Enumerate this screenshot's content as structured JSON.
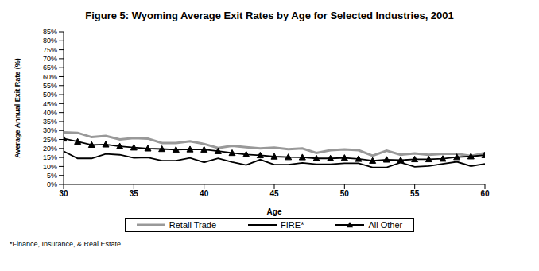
{
  "chart_data": {
    "type": "line",
    "title": "Figure 5: Wyoming Average Exit Rates by Age for Selected Industries, 2001",
    "x_label": "Age",
    "y_label": "Average Annual Exit Rate (%)",
    "footnote": "*Finance, Insurance, & Real Estate.",
    "x": [
      30,
      31,
      32,
      33,
      34,
      35,
      36,
      37,
      38,
      39,
      40,
      41,
      42,
      43,
      44,
      45,
      46,
      47,
      48,
      49,
      50,
      51,
      52,
      53,
      54,
      55,
      56,
      57,
      58,
      59,
      60
    ],
    "series": [
      {
        "name": "Retail Trade",
        "color": "#999999",
        "marker": "none",
        "line_style": "solid",
        "values": [
          29,
          28.7,
          26.3,
          27,
          25,
          25.8,
          25.5,
          23,
          23,
          24,
          22.5,
          20.3,
          21.5,
          20.7,
          20,
          20.5,
          19.6,
          20,
          17.5,
          19,
          19.5,
          19,
          16,
          18.8,
          16.5,
          17.3,
          16.5,
          17,
          17,
          15.8,
          17.5
        ]
      },
      {
        "name": "FIRE*",
        "color": "#000000",
        "marker": "none",
        "line_style": "solid",
        "values": [
          18.5,
          14.5,
          14.5,
          17,
          16.5,
          14.8,
          15,
          13.2,
          13.2,
          14.8,
          12.3,
          14.5,
          12.5,
          10.8,
          13.8,
          11,
          11,
          12,
          11.2,
          11.2,
          11.8,
          11.8,
          9.5,
          9.5,
          12.2,
          9.8,
          10.2,
          11.5,
          12.6,
          10.2,
          11.5
        ]
      },
      {
        "name": "All Other",
        "color": "#000000",
        "marker": "triangle",
        "line_style": "solid",
        "values": [
          25.5,
          23.8,
          22,
          22.2,
          21.2,
          20.5,
          20,
          19.7,
          19.3,
          19.5,
          19.4,
          18.5,
          17.5,
          16.7,
          16.2,
          15.5,
          15.2,
          15.1,
          14.5,
          14.5,
          14.8,
          14.2,
          13.2,
          13.8,
          13.5,
          14,
          14,
          14.3,
          15.2,
          15.6,
          16.3
        ]
      }
    ],
    "xlim": [
      30,
      60
    ],
    "xticks": [
      30,
      35,
      40,
      45,
      50,
      55,
      60
    ],
    "ylim": [
      0,
      85
    ],
    "yticks": [
      {
        "value": 0,
        "label": "0%"
      },
      {
        "value": 5,
        "label": "5%"
      },
      {
        "value": 10,
        "label": "10%"
      },
      {
        "value": 15,
        "label": "15%"
      },
      {
        "value": 20,
        "label": "20%"
      },
      {
        "value": 25,
        "label": "25%"
      },
      {
        "value": 30,
        "label": "30%"
      },
      {
        "value": 35,
        "label": "35%"
      },
      {
        "value": 40,
        "label": "40%"
      },
      {
        "value": 45,
        "label": "45%"
      },
      {
        "value": 50,
        "label": "50%"
      },
      {
        "value": 55,
        "label": "55%"
      },
      {
        "value": 60,
        "label": "60%"
      },
      {
        "value": 65,
        "label": "65%"
      },
      {
        "value": 70,
        "label": "70%"
      },
      {
        "value": 75,
        "label": "75%"
      },
      {
        "value": 80,
        "label": "80%"
      },
      {
        "value": 85,
        "label": "85%"
      }
    ],
    "grid": false,
    "legend": "bottom"
  }
}
